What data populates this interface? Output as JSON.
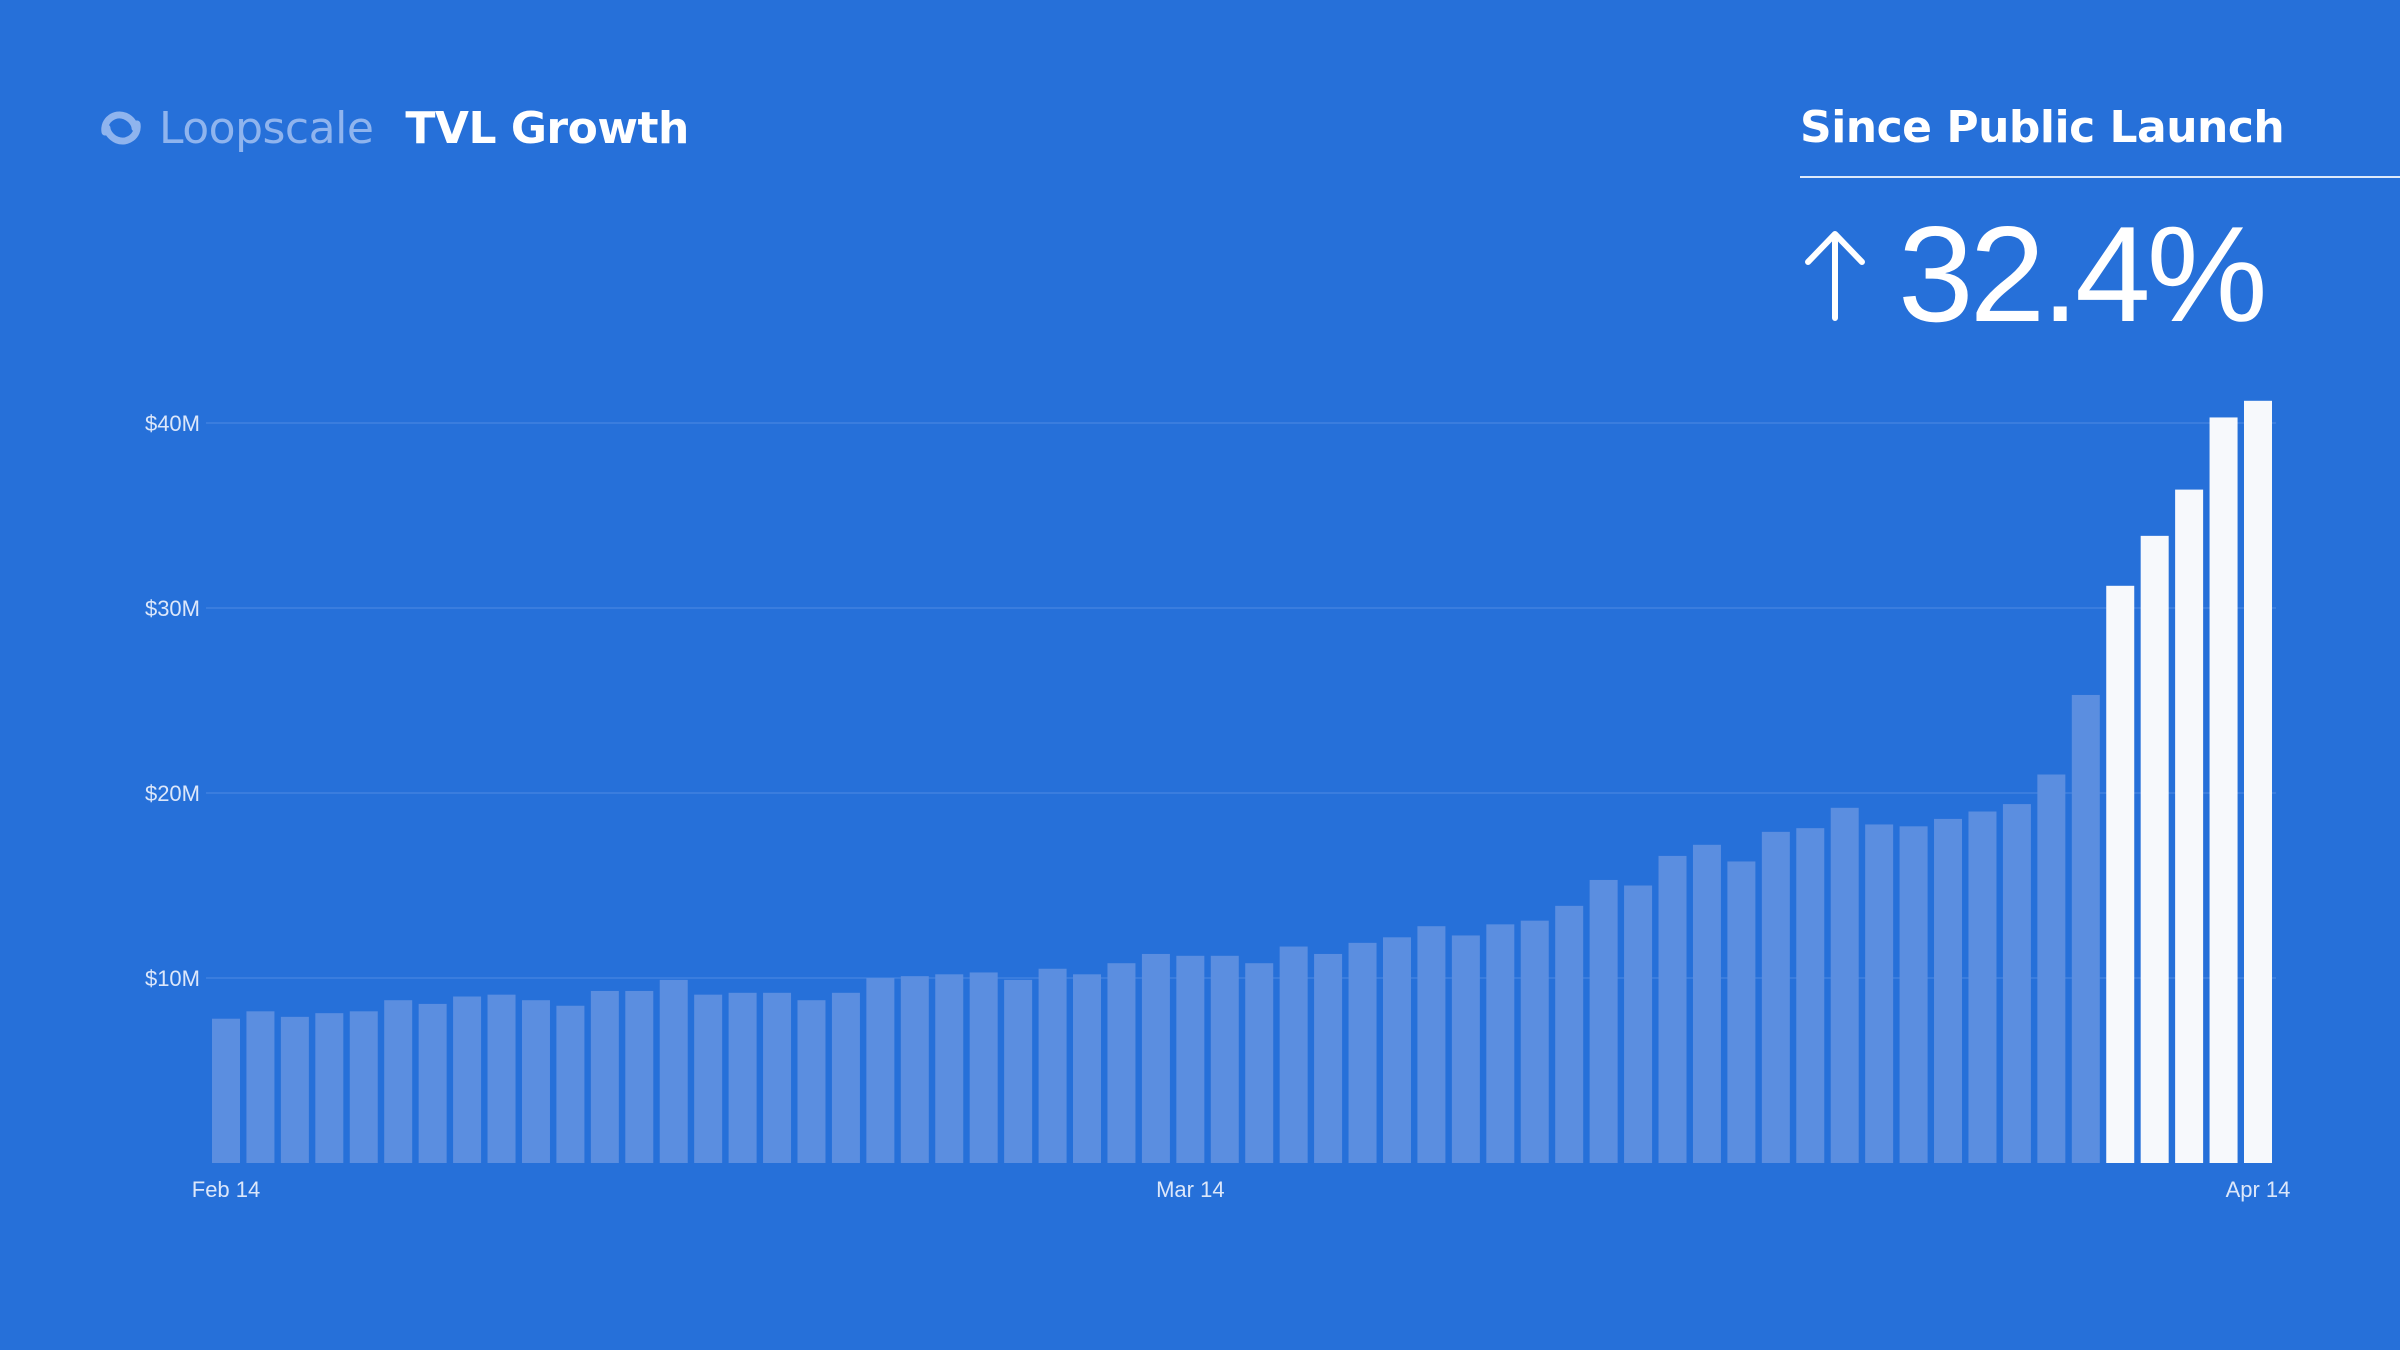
{
  "brand": {
    "name": "Loopscale",
    "logo_icon": "loop-logo-icon"
  },
  "header": {
    "title": "TVL Growth"
  },
  "stat": {
    "label": "Since Public Launch",
    "value": "32.4%",
    "icon": "arrow-up-icon"
  },
  "colors": {
    "background": "#2670D9",
    "bar_normal": "#5B8EE0",
    "bar_highlight": "#F7F9FC",
    "gridline": "#3A7DDE",
    "text": "#FFFFFF",
    "brand": "#8FB4EE"
  },
  "chart_data": {
    "type": "bar",
    "title": "TVL Growth",
    "xlabel": "",
    "ylabel": "",
    "unit": "USD millions",
    "ylim": [
      0,
      40
    ],
    "grid": true,
    "y_ticks": [
      {
        "value": 10,
        "label": "$10M"
      },
      {
        "value": 20,
        "label": "$20M"
      },
      {
        "value": 30,
        "label": "$30M"
      },
      {
        "value": 40,
        "label": "$40M"
      }
    ],
    "x_ticks": [
      {
        "index": 0,
        "label": "Feb 14"
      },
      {
        "index": 28,
        "label": "Mar 14"
      },
      {
        "index": 59,
        "label": "Apr 14"
      }
    ],
    "highlight_from_index": 55,
    "values": [
      7.8,
      8.2,
      7.9,
      8.1,
      8.2,
      8.8,
      8.6,
      9.0,
      9.1,
      8.8,
      8.5,
      9.3,
      9.3,
      9.9,
      9.1,
      9.2,
      9.2,
      8.8,
      9.2,
      10.0,
      10.1,
      10.2,
      10.3,
      9.9,
      10.5,
      10.2,
      10.8,
      11.3,
      11.2,
      11.2,
      10.8,
      11.7,
      11.3,
      11.9,
      12.2,
      12.8,
      12.3,
      12.9,
      13.1,
      13.9,
      15.3,
      15.0,
      16.6,
      17.2,
      16.3,
      17.9,
      18.1,
      19.2,
      18.3,
      18.2,
      18.6,
      19.0,
      19.4,
      21.0,
      25.3,
      31.2,
      33.9,
      36.4,
      40.3,
      41.2
    ]
  }
}
